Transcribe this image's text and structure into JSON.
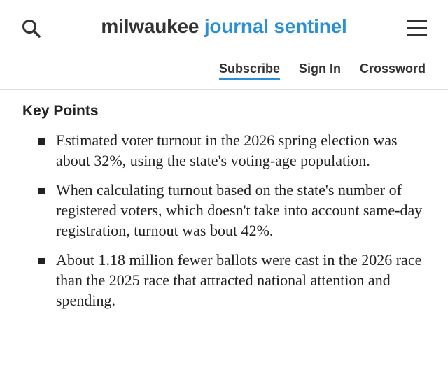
{
  "header": {
    "brand_primary": "milwaukee",
    "brand_secondary": "journal sentinel",
    "nav": [
      "Subscribe",
      "Sign In",
      "Crossword"
    ]
  },
  "article": {
    "heading": "Key Points",
    "points": [
      "Estimated voter turnout in the 2026 spring election was about 32%, using the state's voting-age population.",
      "When calculating turnout based on the state's number of registered voters, which doesn't take into account same-day registration, turnout was bout 42%.",
      "About 1.18 million fewer ballots were cast in the 2026 race than the 2025 race that attracted national attention and spending."
    ]
  }
}
